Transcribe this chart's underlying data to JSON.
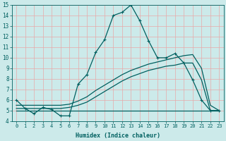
{
  "xlabel": "Humidex (Indice chaleur)",
  "xlim_min": -0.5,
  "xlim_max": 23.5,
  "ylim_min": 4,
  "ylim_max": 15,
  "xticks": [
    0,
    1,
    2,
    3,
    4,
    5,
    6,
    7,
    8,
    9,
    10,
    11,
    12,
    13,
    14,
    15,
    16,
    17,
    18,
    19,
    20,
    21,
    22,
    23
  ],
  "yticks": [
    4,
    5,
    6,
    7,
    8,
    9,
    10,
    11,
    12,
    13,
    14,
    15
  ],
  "bg_color": "#cceaea",
  "grid_color": "#e8a8a8",
  "line_color": "#006060",
  "line1_x": [
    0,
    1,
    2,
    3,
    4,
    5,
    6,
    7,
    8,
    9,
    10,
    11,
    12,
    13,
    14,
    15,
    16,
    17,
    18,
    19,
    20,
    21,
    22,
    23
  ],
  "line1_y": [
    6.0,
    5.2,
    4.7,
    5.3,
    5.1,
    4.5,
    4.5,
    7.5,
    8.4,
    10.5,
    11.7,
    14.0,
    14.3,
    15.0,
    13.5,
    11.6,
    10.0,
    10.0,
    10.4,
    9.5,
    7.9,
    6.0,
    5.0,
    5.0
  ],
  "line2_x": [
    0,
    1,
    2,
    3,
    4,
    5,
    6,
    7,
    8,
    9,
    10,
    11,
    12,
    13,
    14,
    15,
    16,
    17,
    18,
    19,
    20,
    21,
    22,
    23
  ],
  "line2_y": [
    5.0,
    5.0,
    5.0,
    5.0,
    5.0,
    5.0,
    5.0,
    5.0,
    5.0,
    5.0,
    5.0,
    5.0,
    5.0,
    5.0,
    5.0,
    5.0,
    5.0,
    5.0,
    5.0,
    5.0,
    5.0,
    5.0,
    5.0,
    5.0
  ],
  "line3_x": [
    0,
    1,
    2,
    3,
    4,
    5,
    6,
    7,
    8,
    9,
    10,
    11,
    12,
    13,
    14,
    15,
    16,
    17,
    18,
    19,
    20,
    21,
    22,
    23
  ],
  "line3_y": [
    5.2,
    5.2,
    5.2,
    5.2,
    5.2,
    5.2,
    5.3,
    5.5,
    5.8,
    6.3,
    6.8,
    7.3,
    7.8,
    8.2,
    8.5,
    8.8,
    9.0,
    9.2,
    9.3,
    9.5,
    9.5,
    7.9,
    5.0,
    5.0
  ],
  "line4_x": [
    0,
    1,
    2,
    3,
    4,
    5,
    6,
    7,
    8,
    9,
    10,
    11,
    12,
    13,
    14,
    15,
    16,
    17,
    18,
    19,
    20,
    21,
    22,
    23
  ],
  "line4_y": [
    5.5,
    5.5,
    5.5,
    5.5,
    5.5,
    5.5,
    5.6,
    5.9,
    6.3,
    6.9,
    7.4,
    7.9,
    8.4,
    8.8,
    9.1,
    9.4,
    9.6,
    9.8,
    10.0,
    10.2,
    10.3,
    9.0,
    5.5,
    5.0
  ]
}
